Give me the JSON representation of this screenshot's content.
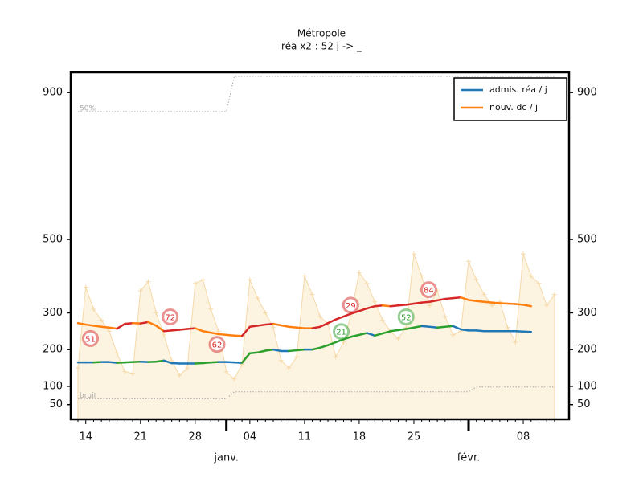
{
  "chart_data": {
    "type": "line",
    "title": "Métropole",
    "subtitle": "réa x2 : 52 j -> _",
    "categories": [
      null,
      "14",
      null,
      null,
      null,
      null,
      null,
      null,
      "21",
      null,
      null,
      null,
      null,
      null,
      null,
      "28",
      null,
      null,
      null,
      null,
      null,
      null,
      "04",
      null,
      null,
      null,
      null,
      null,
      null,
      "11",
      null,
      null,
      null,
      null,
      null,
      null,
      "18",
      null,
      null,
      null,
      null,
      null,
      null,
      "25",
      null,
      null,
      null,
      null,
      null,
      null,
      null,
      null,
      null,
      null,
      null,
      null,
      null,
      "08",
      null,
      null,
      null,
      null
    ],
    "x_groups": [
      {
        "label": "janv.",
        "at": 19
      },
      {
        "label": "févr.",
        "at": 50
      }
    ],
    "ylim": [
      10,
      955
    ],
    "yticks": [
      50,
      100,
      200,
      300,
      500,
      900
    ],
    "legend": "upper right",
    "series": [
      {
        "name": "admis. réa / j",
        "color": "#1f77b4",
        "trend_color": "#2ca02c",
        "values": [
          165,
          165,
          165,
          166,
          166,
          164,
          165,
          166,
          167,
          166,
          167,
          170,
          163,
          162,
          162,
          162,
          163,
          165,
          166,
          166,
          165,
          164,
          190,
          192,
          197,
          200,
          196,
          196,
          198,
          200,
          200,
          205,
          212,
          220,
          228,
          235,
          240,
          245,
          238,
          244,
          250,
          253,
          256,
          260,
          264,
          262,
          260,
          262,
          264,
          255,
          252,
          252,
          250,
          250,
          250,
          250,
          250,
          249,
          248,
          null,
          null,
          null
        ]
      },
      {
        "name": "nouv. dc / j",
        "color": "#ff7f0e",
        "trend_color": "#d62728",
        "values": [
          272,
          268,
          265,
          262,
          260,
          257,
          270,
          272,
          271,
          275,
          265,
          250,
          252,
          254,
          256,
          258,
          250,
          246,
          242,
          240,
          238,
          237,
          262,
          265,
          268,
          270,
          266,
          262,
          260,
          258,
          258,
          262,
          272,
          282,
          290,
          298,
          305,
          312,
          318,
          320,
          318,
          320,
          322,
          325,
          328,
          330,
          334,
          338,
          340,
          342,
          335,
          332,
          330,
          328,
          326,
          325,
          324,
          322,
          318,
          null,
          null,
          null
        ]
      }
    ],
    "area": {
      "color": "#fdf3e1",
      "marker_color": "#f5d9a8",
      "values": [
        150,
        370,
        310,
        280,
        250,
        190,
        140,
        135,
        360,
        385,
        300,
        240,
        170,
        130,
        150,
        380,
        390,
        310,
        250,
        140,
        120,
        160,
        390,
        340,
        300,
        260,
        170,
        150,
        180,
        400,
        350,
        290,
        270,
        180,
        220,
        300,
        410,
        380,
        330,
        280,
        250,
        230,
        260,
        460,
        400,
        320,
        360,
        290,
        240,
        250,
        440,
        390,
        350,
        320,
        330,
        260,
        220,
        460,
        400,
        380,
        320,
        350
      ]
    },
    "reference_lines": [
      {
        "name": "50%",
        "values": [
          848,
          848,
          848,
          848,
          848,
          848,
          848,
          848,
          848,
          848,
          848,
          848,
          848,
          848,
          848,
          848,
          848,
          848,
          848,
          848,
          944,
          944,
          944,
          944,
          944,
          944,
          944,
          944,
          944,
          944,
          944,
          944,
          944,
          944,
          944,
          944,
          944,
          944,
          944,
          944,
          944,
          944,
          944,
          944,
          944,
          944,
          944,
          944,
          944,
          944,
          944,
          944,
          944,
          944,
          944,
          944,
          944,
          944,
          944,
          944,
          944,
          944
        ]
      },
      {
        "name": "bruit",
        "values": [
          66,
          66,
          66,
          66,
          66,
          66,
          66,
          66,
          66,
          66,
          66,
          66,
          66,
          66,
          66,
          66,
          66,
          66,
          66,
          66,
          85,
          85,
          85,
          85,
          85,
          85,
          85,
          85,
          85,
          85,
          85,
          85,
          85,
          85,
          85,
          85,
          85,
          85,
          85,
          85,
          85,
          85,
          85,
          85,
          85,
          85,
          85,
          85,
          85,
          85,
          85,
          98,
          98,
          98,
          98,
          98,
          98,
          98,
          98,
          98,
          98,
          98
        ]
      }
    ],
    "annotations": [
      {
        "x": 1.6,
        "y": 230,
        "text": "51",
        "color": "#d62728"
      },
      {
        "x": 11.8,
        "y": 289,
        "text": "72",
        "color": "#d62728"
      },
      {
        "x": 17.8,
        "y": 214,
        "text": "62",
        "color": "#d62728"
      },
      {
        "x": 33.7,
        "y": 249,
        "text": "21",
        "color": "#2ca02c"
      },
      {
        "x": 34.9,
        "y": 321,
        "text": "29",
        "color": "#d62728"
      },
      {
        "x": 42,
        "y": 289,
        "text": "52",
        "color": "#2ca02c"
      },
      {
        "x": 44.9,
        "y": 363,
        "text": "84",
        "color": "#d62728"
      }
    ]
  }
}
